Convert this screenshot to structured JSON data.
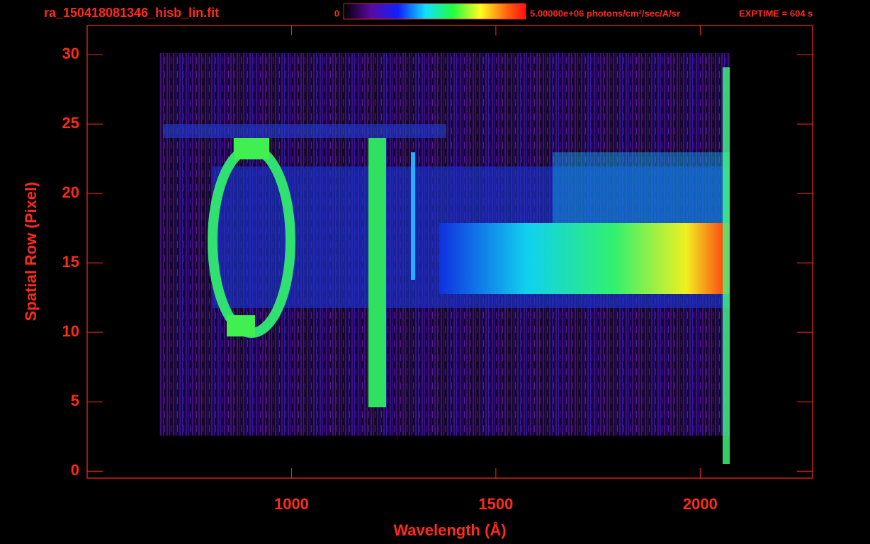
{
  "chart_data": {
    "type": "image",
    "title": "ra_150418081346_hisb_lin.fit",
    "annotation": "EXPTIME = 604 s",
    "xlabel": "Wavelength (Å)",
    "ylabel": "Spatial Row (Pixel)",
    "xlim": [
      500,
      2275
    ],
    "ylim": [
      -0.5,
      32.1
    ],
    "xticks": [
      1000,
      1500,
      2000
    ],
    "yticks": [
      0,
      5,
      10,
      15,
      20,
      25,
      30
    ],
    "clim": [
      0,
      5000000
    ],
    "cticks": [
      0,
      {
        "value": 5000000,
        "label": "5.00000e+06 photons/cm²/sec/A/sr"
      }
    ],
    "color": "#ff2a1a"
  }
}
